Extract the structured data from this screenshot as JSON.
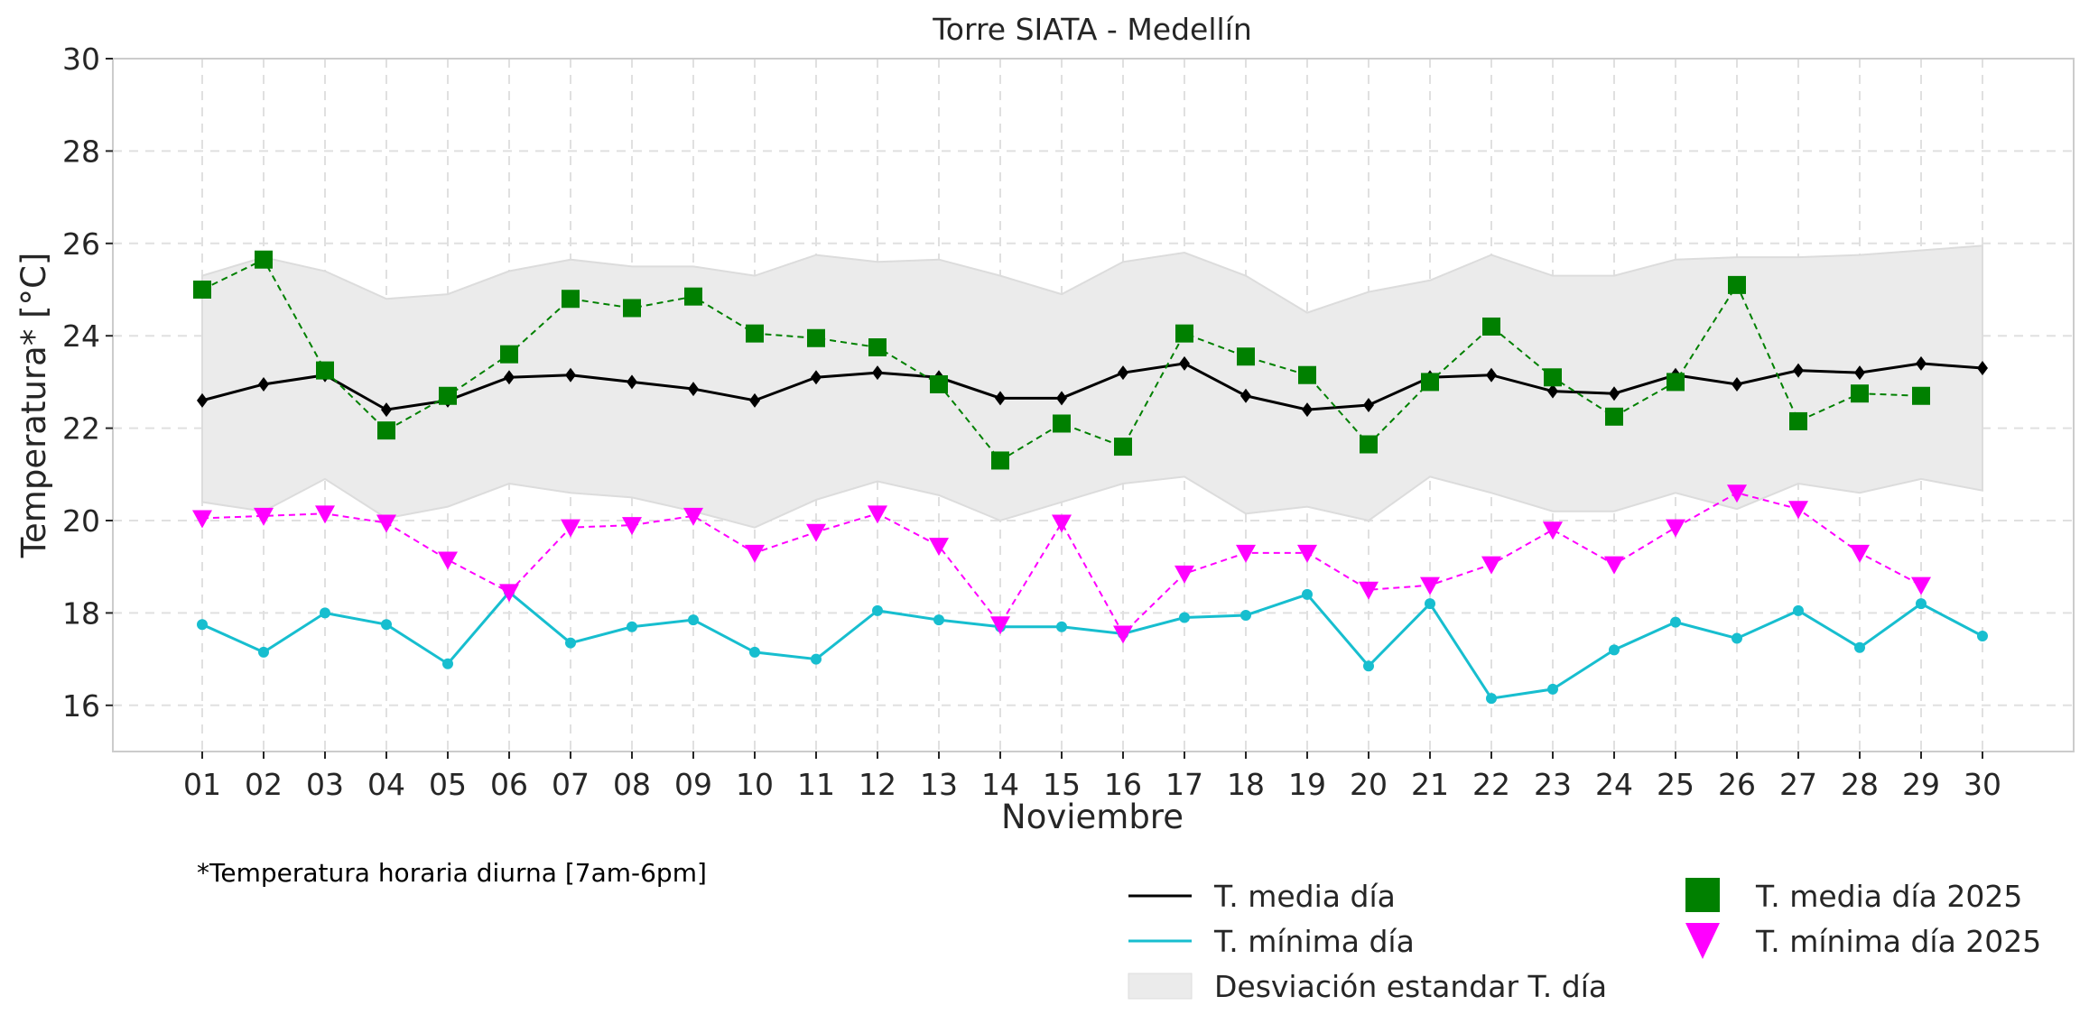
{
  "chart_data": {
    "type": "line",
    "title": "Torre SIATA - Medellín",
    "xlabel": "Noviembre",
    "ylabel": "Temperatura* [°C]",
    "ylim": [
      15,
      30
    ],
    "yticks": [
      16,
      18,
      20,
      22,
      24,
      26,
      28,
      30
    ],
    "grid": true,
    "categories": [
      "01",
      "02",
      "03",
      "04",
      "05",
      "06",
      "07",
      "08",
      "09",
      "10",
      "11",
      "12",
      "13",
      "14",
      "15",
      "16",
      "17",
      "18",
      "19",
      "20",
      "21",
      "22",
      "23",
      "24",
      "25",
      "26",
      "27",
      "28",
      "29",
      "30"
    ],
    "series": [
      {
        "name": "T. media día",
        "color": "#000000",
        "style": "solid",
        "marker": "diamond",
        "values": [
          22.6,
          22.95,
          23.15,
          22.4,
          22.6,
          23.1,
          23.15,
          23.0,
          22.85,
          22.6,
          23.1,
          23.2,
          23.1,
          22.65,
          22.65,
          23.2,
          23.4,
          22.7,
          22.4,
          22.5,
          23.1,
          23.15,
          22.8,
          22.75,
          23.15,
          22.95,
          23.25,
          23.2,
          23.4,
          23.3
        ]
      },
      {
        "name": "T. mínima día",
        "color": "#17becf",
        "style": "solid",
        "marker": "circle",
        "values": [
          17.75,
          17.15,
          18.0,
          17.75,
          16.9,
          18.45,
          17.35,
          17.7,
          17.85,
          17.15,
          17.0,
          18.05,
          17.85,
          17.7,
          17.7,
          17.55,
          17.9,
          17.95,
          18.4,
          16.85,
          18.2,
          16.15,
          16.35,
          17.2,
          17.8,
          17.45,
          18.05,
          17.25,
          18.2,
          17.5
        ]
      },
      {
        "name": "T. media día 2025",
        "color": "#008000",
        "style": "dashed",
        "marker": "square",
        "values": [
          25.0,
          25.65,
          23.25,
          21.95,
          22.7,
          23.6,
          24.8,
          24.6,
          24.85,
          24.05,
          23.95,
          23.75,
          22.95,
          21.3,
          22.1,
          21.6,
          24.05,
          23.55,
          23.15,
          21.65,
          23.0,
          24.2,
          23.1,
          22.25,
          23.0,
          25.1,
          22.15,
          22.75,
          22.7
        ]
      },
      {
        "name": "T. mínima día 2025",
        "color": "#ff00ff",
        "style": "dashed",
        "marker": "triangle-down",
        "values": [
          20.05,
          20.1,
          20.15,
          19.95,
          19.15,
          18.45,
          19.85,
          19.9,
          20.1,
          19.3,
          19.75,
          20.15,
          19.45,
          17.75,
          19.95,
          17.55,
          18.85,
          19.3,
          19.3,
          18.5,
          18.6,
          19.05,
          19.8,
          19.05,
          19.85,
          20.6,
          20.25,
          19.3,
          18.6
        ]
      }
    ],
    "band": {
      "name": "Desviación estandar T. día",
      "color": "#ebebeb",
      "upper": [
        25.3,
        25.7,
        25.4,
        24.8,
        24.9,
        25.4,
        25.65,
        25.5,
        25.5,
        25.3,
        25.75,
        25.6,
        25.65,
        25.3,
        24.9,
        25.6,
        25.8,
        25.3,
        24.5,
        24.95,
        25.2,
        25.75,
        25.3,
        25.3,
        25.65,
        25.7,
        25.7,
        25.75,
        25.85,
        25.95
      ],
      "lower": [
        20.4,
        20.2,
        20.9,
        20.05,
        20.3,
        20.8,
        20.6,
        20.5,
        20.2,
        19.85,
        20.45,
        20.85,
        20.55,
        20.0,
        20.4,
        20.8,
        20.95,
        20.15,
        20.3,
        20.0,
        20.95,
        20.6,
        20.2,
        20.2,
        20.6,
        20.25,
        20.8,
        20.6,
        20.9,
        20.65
      ]
    },
    "annotation": "*Temperatura horaria diurna [7am-6pm]",
    "legend": {
      "placement": "bottom-right",
      "entries": [
        {
          "label": "T. media día",
          "type": "line",
          "color": "#000000"
        },
        {
          "label": "T. mínima día",
          "type": "line",
          "color": "#17becf"
        },
        {
          "label": "Desviación estandar T. día",
          "type": "patch",
          "color": "#ebebeb"
        },
        {
          "label": "T. media día 2025",
          "type": "square",
          "color": "#008000"
        },
        {
          "label": "T. mínima día 2025",
          "type": "triangle-down",
          "color": "#ff00ff"
        }
      ]
    }
  }
}
